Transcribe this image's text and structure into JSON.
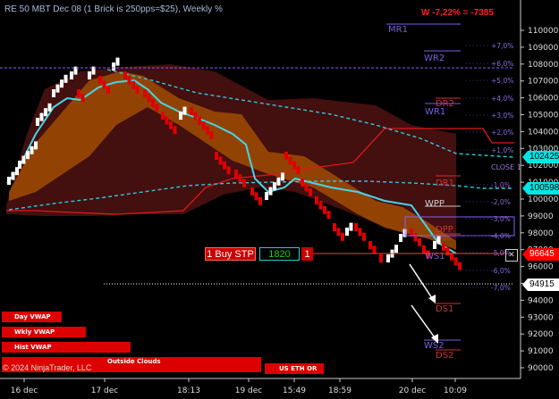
{
  "header": {
    "title": "RE 50 MBT Dec 08 (1 Brick is 250pps=$25), Weekly %",
    "pnl": "W -7,22% = -7385"
  },
  "copyright": "© 2024 NinjaTrader, LLC",
  "price_axis": {
    "ticks": [
      "110000",
      "109000",
      "108000",
      "107000",
      "106000",
      "105000",
      "104000",
      "103000",
      "102000",
      "101000",
      "100000",
      "99000",
      "98000",
      "97000",
      "96000",
      "95000",
      "94000",
      "93000",
      "92000",
      "91000",
      "90000"
    ],
    "tags": [
      {
        "label": "102425",
        "bg": "#00e5e5",
        "fg": "#000"
      },
      {
        "label": "100598",
        "bg": "#00e5e5",
        "fg": "#000"
      },
      {
        "label": "96645",
        "bg": "#ff0000",
        "fg": "#fff"
      },
      {
        "label": "94915",
        "bg": "#ffffff",
        "fg": "#000"
      }
    ]
  },
  "time_axis": [
    "16 dec",
    "17 dec",
    "18:13",
    "19 dec",
    "15:49",
    "18:59",
    "20 dec",
    "10:09"
  ],
  "percent_levels": [
    "+7,0%",
    "+6,0%",
    "+5,0%",
    "+4,0%",
    "+3,0%",
    "+2,0%",
    "+1,0%",
    "-1,0%",
    "-2,0%",
    "-3,0%",
    "-4,0%",
    "-5,0%",
    "-6,0%",
    "-7,0%"
  ],
  "pivot_labels": [
    "MR1",
    "WR2",
    "DR2",
    "WR1",
    "CLOSE 1",
    "DR1",
    "WPP",
    "DPP",
    "WS1",
    "DS1",
    "WS2",
    "DS2"
  ],
  "order": {
    "label": "1 Buy STP",
    "qty": "1820",
    "count": "1",
    "close": "✕"
  },
  "vwap_pills": [
    "Day VWAP",
    "Wkly VWAP",
    "Hist VWAP",
    "Outside Clouds",
    "US ETH OR"
  ],
  "colors": {
    "up_brick": "#ffffff",
    "down_brick": "#e00000",
    "cyan": "#2ec8d8",
    "orange_cloud": "#b35a00",
    "red_cloud": "#5a1414",
    "pivot_purple": "#7b4fd6",
    "accent_red": "#ff0000"
  }
}
